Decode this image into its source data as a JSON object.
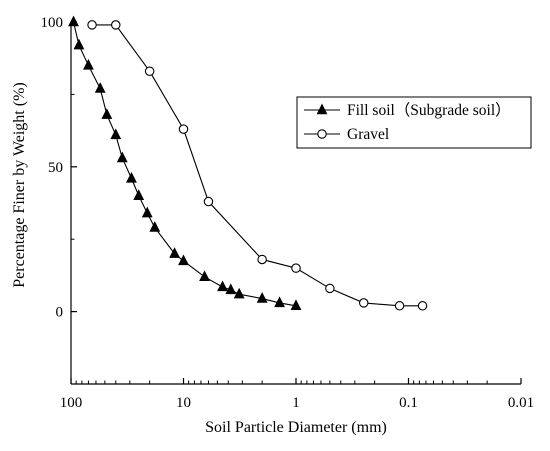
{
  "chart_data": {
    "type": "scatter",
    "x_scale": "log",
    "x_reversed": true,
    "xlabel": "Soil Particle Diameter (mm)",
    "ylabel": "Percentage Finer by Weight (%)",
    "xlim": [
      100,
      0.01
    ],
    "ylim": [
      -25,
      100
    ],
    "x_ticks": [
      {
        "value": 100,
        "label": "100"
      },
      {
        "value": 10,
        "label": "10"
      },
      {
        "value": 1,
        "label": "1"
      },
      {
        "value": 0.1,
        "label": "0.1"
      },
      {
        "value": 0.01,
        "label": "0.01"
      }
    ],
    "y_ticks": [
      {
        "value": 100,
        "label": "100"
      },
      {
        "value": 50,
        "label": "50"
      },
      {
        "value": 0,
        "label": "0"
      }
    ],
    "grid": false,
    "legend_position": "top-right",
    "series": [
      {
        "name": "Fill soil（Subgrade soil）",
        "marker": "filled-triangle",
        "color": "#000000",
        "points": [
          {
            "x": 95,
            "y": 100
          },
          {
            "x": 85,
            "y": 92
          },
          {
            "x": 70,
            "y": 85
          },
          {
            "x": 55,
            "y": 77
          },
          {
            "x": 48,
            "y": 68
          },
          {
            "x": 40,
            "y": 61
          },
          {
            "x": 35,
            "y": 53
          },
          {
            "x": 29,
            "y": 46
          },
          {
            "x": 25,
            "y": 40
          },
          {
            "x": 21,
            "y": 34
          },
          {
            "x": 18,
            "y": 29
          },
          {
            "x": 12,
            "y": 20
          },
          {
            "x": 10,
            "y": 17.5
          },
          {
            "x": 6.5,
            "y": 12
          },
          {
            "x": 4.5,
            "y": 8.5
          },
          {
            "x": 3.8,
            "y": 7.5
          },
          {
            "x": 3.2,
            "y": 6
          },
          {
            "x": 2,
            "y": 4.5
          },
          {
            "x": 1.4,
            "y": 3
          },
          {
            "x": 1,
            "y": 2
          }
        ]
      },
      {
        "name": "Gravel",
        "marker": "open-circle",
        "color": "#000000",
        "points": [
          {
            "x": 65,
            "y": 99
          },
          {
            "x": 40,
            "y": 99
          },
          {
            "x": 20,
            "y": 83
          },
          {
            "x": 10,
            "y": 63
          },
          {
            "x": 6,
            "y": 38
          },
          {
            "x": 2,
            "y": 18
          },
          {
            "x": 1,
            "y": 15
          },
          {
            "x": 0.5,
            "y": 8
          },
          {
            "x": 0.25,
            "y": 3
          },
          {
            "x": 0.12,
            "y": 2
          },
          {
            "x": 0.075,
            "y": 2
          }
        ]
      }
    ]
  }
}
